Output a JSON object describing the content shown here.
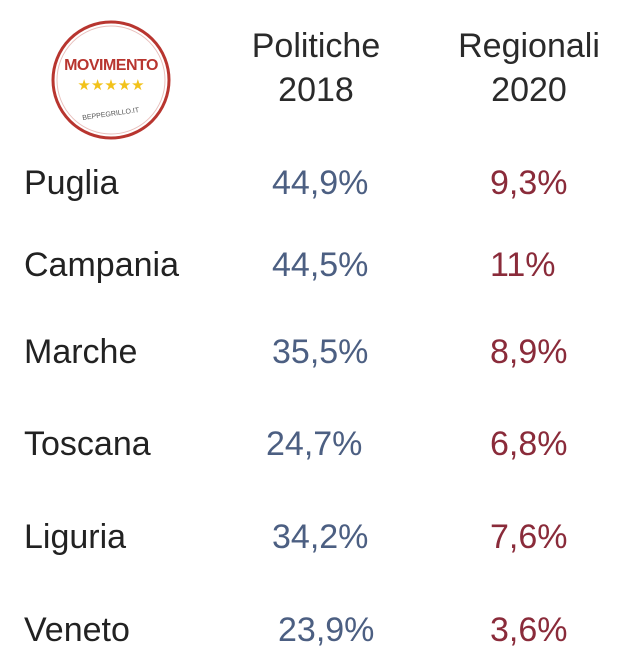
{
  "logo": {
    "text": "MOVIMENTO",
    "stars": "★★★★★",
    "url_text": "BEPPEGRILLO.IT"
  },
  "chart_data": {
    "type": "table",
    "columns": [
      {
        "line1": "Politiche",
        "line2": "2018"
      },
      {
        "line1": "Regionali",
        "line2": "2020"
      }
    ],
    "rows": [
      {
        "region": "Puglia",
        "politiche_2018": "44,9%",
        "regionali_2020": "9,3%"
      },
      {
        "region": "Campania",
        "politiche_2018": "44,5%",
        "regionali_2020": "11%"
      },
      {
        "region": "Marche",
        "politiche_2018": "35,5%",
        "regionali_2020": "8,9%"
      },
      {
        "region": "Toscana",
        "politiche_2018": "24,7%",
        "regionali_2020": "6,8%"
      },
      {
        "region": "Liguria",
        "politiche_2018": "34,2%",
        "regionali_2020": "7,6%"
      },
      {
        "region": "Veneto",
        "politiche_2018": "23,9%",
        "regionali_2020": "3,6%"
      }
    ],
    "colors": {
      "politiche_2018": "#4c5f82",
      "regionali_2020": "#8a2b3a",
      "region": "#222222"
    }
  }
}
